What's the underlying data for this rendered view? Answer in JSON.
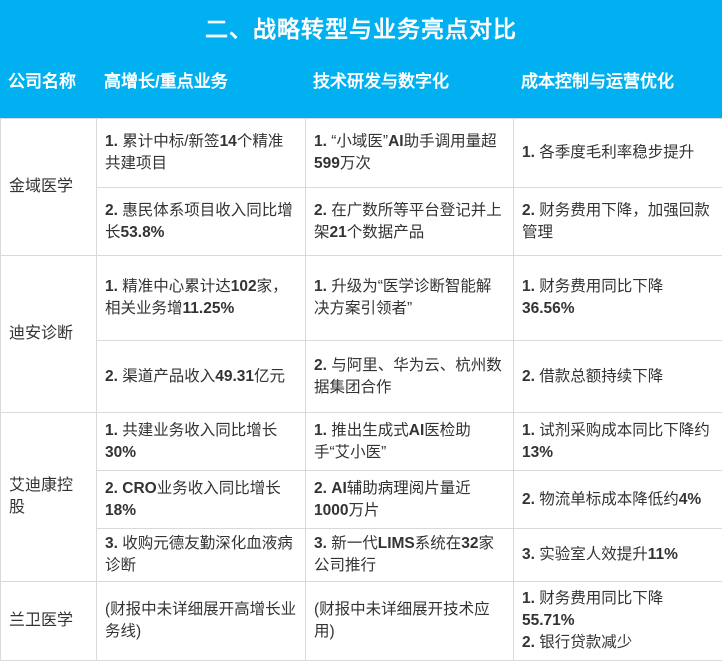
{
  "page": {
    "title": "二、战略转型与业务亮点对比"
  },
  "table": {
    "columns": [
      "公司名称",
      "高增长/重点业务",
      "技术研发与数字化",
      "成本控制与运营优化"
    ],
    "companies": [
      {
        "name": "金域医学",
        "rows": [
          [
            "1. 累计中标/新签14个精准共建项目",
            "1. “小域医”AI助手调用量超599万次",
            "1. 各季度毛利率稳步提升"
          ],
          [
            "2. 惠民体系项目收入同比增长53.8%",
            "2. 在广数所等平台登记并上架21个数据产品",
            "2. 财务费用下降，加强回款管理"
          ]
        ]
      },
      {
        "name": "迪安诊断",
        "rows": [
          [
            "1. 精准中心累计达102家，相关业务增11.25%",
            "1. 升级为“医学诊断智能解决方案引领者”",
            "1. 财务费用同比下降36.56%"
          ],
          [
            "2. 渠道产品收入49.31亿元",
            "2. 与阿里、华为云、杭州数据集团合作",
            "2. 借款总额持续下降"
          ]
        ]
      },
      {
        "name": "艾迪康控股",
        "rows": [
          [
            "1. 共建业务收入同比增长30%",
            "1. 推出生成式AI医检助手“艾小医”",
            "1. 试剂采购成本同比下降约13%"
          ],
          [
            "2. CRO业务收入同比增长18%",
            "2. AI辅助病理阅片量近1000万片",
            "2. 物流单标成本降低约4%"
          ],
          [
            "3. 收购元德友勤深化血液病诊断",
            "3. 新一代LIMS系统在32家公司推行",
            "3. 实验室人效提升11%"
          ]
        ]
      },
      {
        "name": "兰卫医学",
        "rows": [
          [
            "(财报中未详细展开高增长业务线)",
            "(财报中未详细展开技术应用)",
            "1. 财务费用同比下降55.71%\n2. 银行贷款减少"
          ]
        ]
      }
    ]
  },
  "colors": {
    "header_bg": "#00b0f0",
    "header_text": "#ffffff",
    "border": "#d9d9d9",
    "body_text": "#333333"
  }
}
